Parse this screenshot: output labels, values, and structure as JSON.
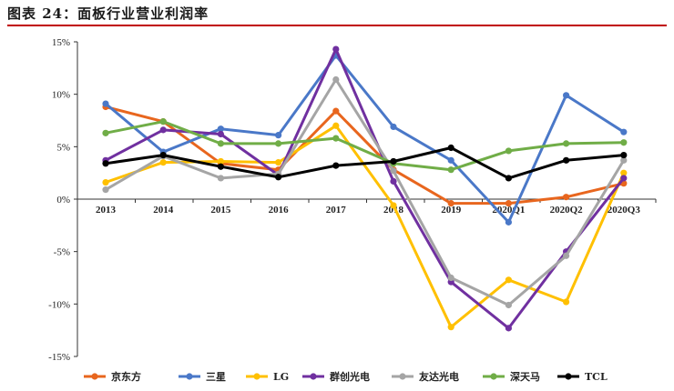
{
  "title": "图表 24：面板行业营业利润率",
  "chart_data": {
    "type": "line",
    "categories": [
      "2013",
      "2014",
      "2015",
      "2016",
      "2017",
      "2018",
      "2019",
      "2020Q1",
      "2020Q2",
      "2020Q3"
    ],
    "y_ticks": [
      "15%",
      "10%",
      "5%",
      "0%",
      "-5%",
      "-10%",
      "-15%"
    ],
    "ylim": [
      -15,
      15
    ],
    "grid": false,
    "legend_position": "bottom",
    "series": [
      {
        "name": "京东方",
        "color": "#e8661e",
        "values": [
          8.8,
          7.4,
          3.4,
          2.8,
          8.4,
          2.8,
          -0.4,
          -0.4,
          0.2,
          1.5
        ]
      },
      {
        "name": "三星",
        "color": "#4a78c8",
        "values": [
          9.1,
          4.5,
          6.7,
          6.1,
          13.7,
          6.9,
          3.7,
          -2.2,
          9.9,
          6.4
        ]
      },
      {
        "name": "LG",
        "color": "#ffc000",
        "values": [
          1.6,
          3.5,
          3.6,
          3.5,
          7.0,
          -0.6,
          -12.2,
          -7.7,
          -9.8,
          2.5
        ]
      },
      {
        "name": "群创光电",
        "color": "#7030a0",
        "values": [
          3.7,
          6.6,
          6.2,
          2.3,
          14.3,
          1.7,
          -7.9,
          -12.3,
          -5.0,
          2.0
        ]
      },
      {
        "name": "友达光电",
        "color": "#a5a5a5",
        "values": [
          0.9,
          4.1,
          2.0,
          2.4,
          11.4,
          2.7,
          -7.5,
          -10.1,
          -5.4,
          3.7
        ]
      },
      {
        "name": "深天马",
        "color": "#70ad47",
        "values": [
          6.3,
          7.4,
          5.3,
          5.3,
          5.8,
          3.4,
          2.8,
          4.6,
          5.3,
          5.4
        ]
      },
      {
        "name": "TCL",
        "color": "#000000",
        "values": [
          3.4,
          4.2,
          3.1,
          2.1,
          3.2,
          3.6,
          4.9,
          2.0,
          3.7,
          4.2
        ]
      }
    ]
  }
}
